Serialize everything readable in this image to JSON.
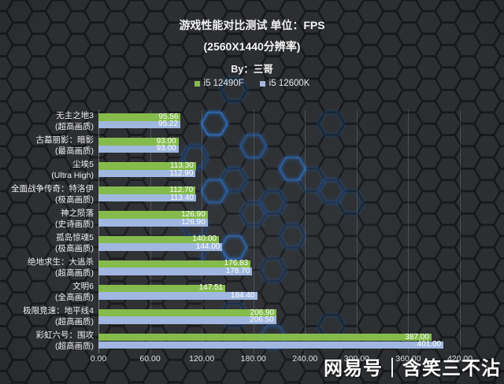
{
  "watermark": {
    "text": "网易号｜含笑三不沾"
  },
  "chart_data": {
    "type": "bar",
    "orientation": "horizontal",
    "title": "游戏性能对比测试 单位：FPS",
    "subtitle": "(2560X1440分辨率)",
    "byline": "By：三哥",
    "legend_position": "top",
    "grid": "vertical",
    "value_labels": "inside-end, two decimals",
    "xlim": [
      0,
      420
    ],
    "x_ticks": [
      "0.00",
      "60.00",
      "120.00",
      "180.00",
      "240.00",
      "300.00",
      "360.00",
      "420.00"
    ],
    "categories": [
      {
        "game": "无主之地3",
        "quality": "(超高画质)"
      },
      {
        "game": "古墓丽影：暗影",
        "quality": "(最高画质)"
      },
      {
        "game": "尘埃5",
        "quality": "(Ultra High)"
      },
      {
        "game": "全面战争传奇：特洛伊",
        "quality": "(极高画质)"
      },
      {
        "game": "神之陨落",
        "quality": "(史诗画质)"
      },
      {
        "game": "孤岛惊魂5",
        "quality": "(极高画质)"
      },
      {
        "game": "绝地求生：大逃杀",
        "quality": "(超高画质)"
      },
      {
        "game": "文明6",
        "quality": "(全高画质)"
      },
      {
        "game": "极限竞速：地平线4",
        "quality": "(超高画质)"
      },
      {
        "game": "彩虹六号：围攻",
        "quality": "(超高画质)"
      }
    ],
    "series": [
      {
        "name": "i5 12490F",
        "color": "#85bb4d",
        "values": [
          95.56,
          93.0,
          113.3,
          112.7,
          126.9,
          140.0,
          176.83,
          147.51,
          206.9,
          387.0
        ]
      },
      {
        "name": "i5 12600K",
        "color": "#a0b7df",
        "values": [
          95.22,
          93.0,
          112.9,
          113.4,
          126.9,
          144.0,
          178.7,
          184.4,
          206.5,
          401.0
        ]
      }
    ]
  }
}
